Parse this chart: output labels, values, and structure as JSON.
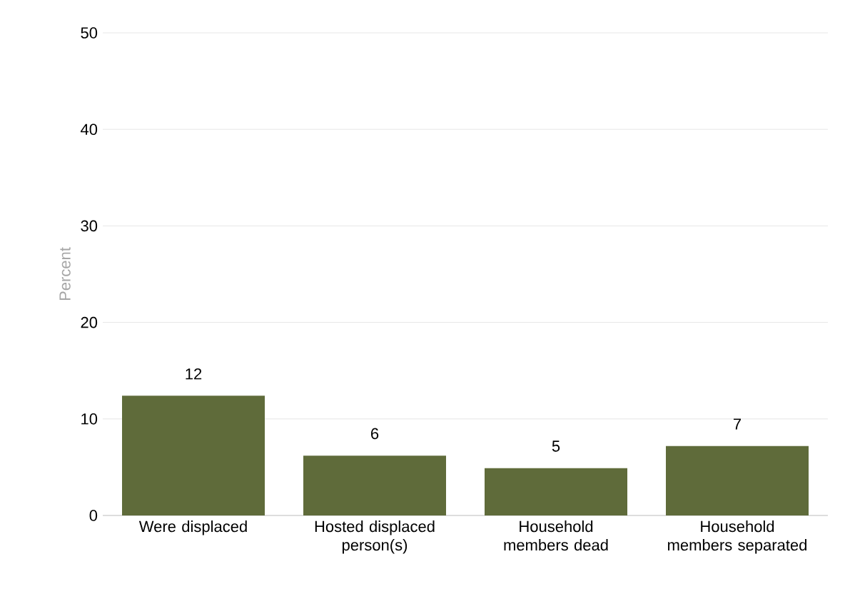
{
  "chart_data": {
    "type": "bar",
    "ylabel": "Percent",
    "categories": [
      "Were displaced",
      "Hosted displaced person(s)",
      "Household members dead",
      "Household members separated"
    ],
    "values": [
      12.4,
      6.2,
      4.9,
      7.2
    ],
    "value_labels": [
      "12",
      "6",
      "5",
      "7"
    ],
    "color": "#5f6b3a",
    "ylim": [
      0,
      50
    ],
    "yticks": [
      0,
      10,
      20,
      30,
      40,
      50
    ],
    "grid": "y"
  }
}
